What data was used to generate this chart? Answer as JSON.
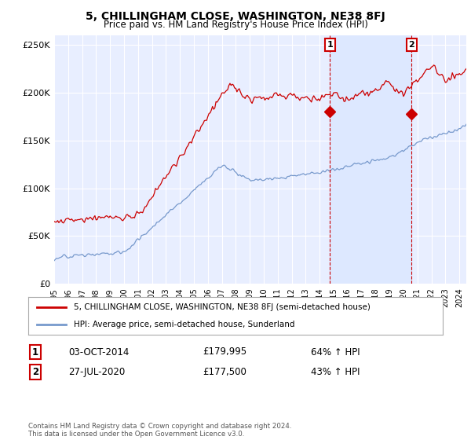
{
  "title": "5, CHILLINGHAM CLOSE, WASHINGTON, NE38 8FJ",
  "subtitle": "Price paid vs. HM Land Registry's House Price Index (HPI)",
  "red_label": "5, CHILLINGHAM CLOSE, WASHINGTON, NE38 8FJ (semi-detached house)",
  "blue_label": "HPI: Average price, semi-detached house, Sunderland",
  "annotation1": {
    "num": "1",
    "date": "03-OCT-2014",
    "price": "£179,995",
    "pct": "64% ↑ HPI"
  },
  "annotation2": {
    "num": "2",
    "date": "27-JUL-2020",
    "price": "£177,500",
    "pct": "43% ↑ HPI"
  },
  "footer": "Contains HM Land Registry data © Crown copyright and database right 2024.\nThis data is licensed under the Open Government Licence v3.0.",
  "ylim": [
    0,
    260000
  ],
  "yticks": [
    0,
    50000,
    100000,
    150000,
    200000,
    250000
  ],
  "ytick_labels": [
    "£0",
    "£50K",
    "£100K",
    "£150K",
    "£200K",
    "£250K"
  ],
  "background_color": "#ffffff",
  "plot_bg_color": "#e8eeff",
  "grid_color": "#ffffff",
  "red_color": "#cc0000",
  "blue_color": "#7799cc",
  "shade_color": "#dde8ff",
  "sale1_x": 2014.75,
  "sale1_y": 179995,
  "sale2_x": 2020.58,
  "sale2_y": 177500,
  "xlim_start": 1995,
  "xlim_end": 2024.5
}
